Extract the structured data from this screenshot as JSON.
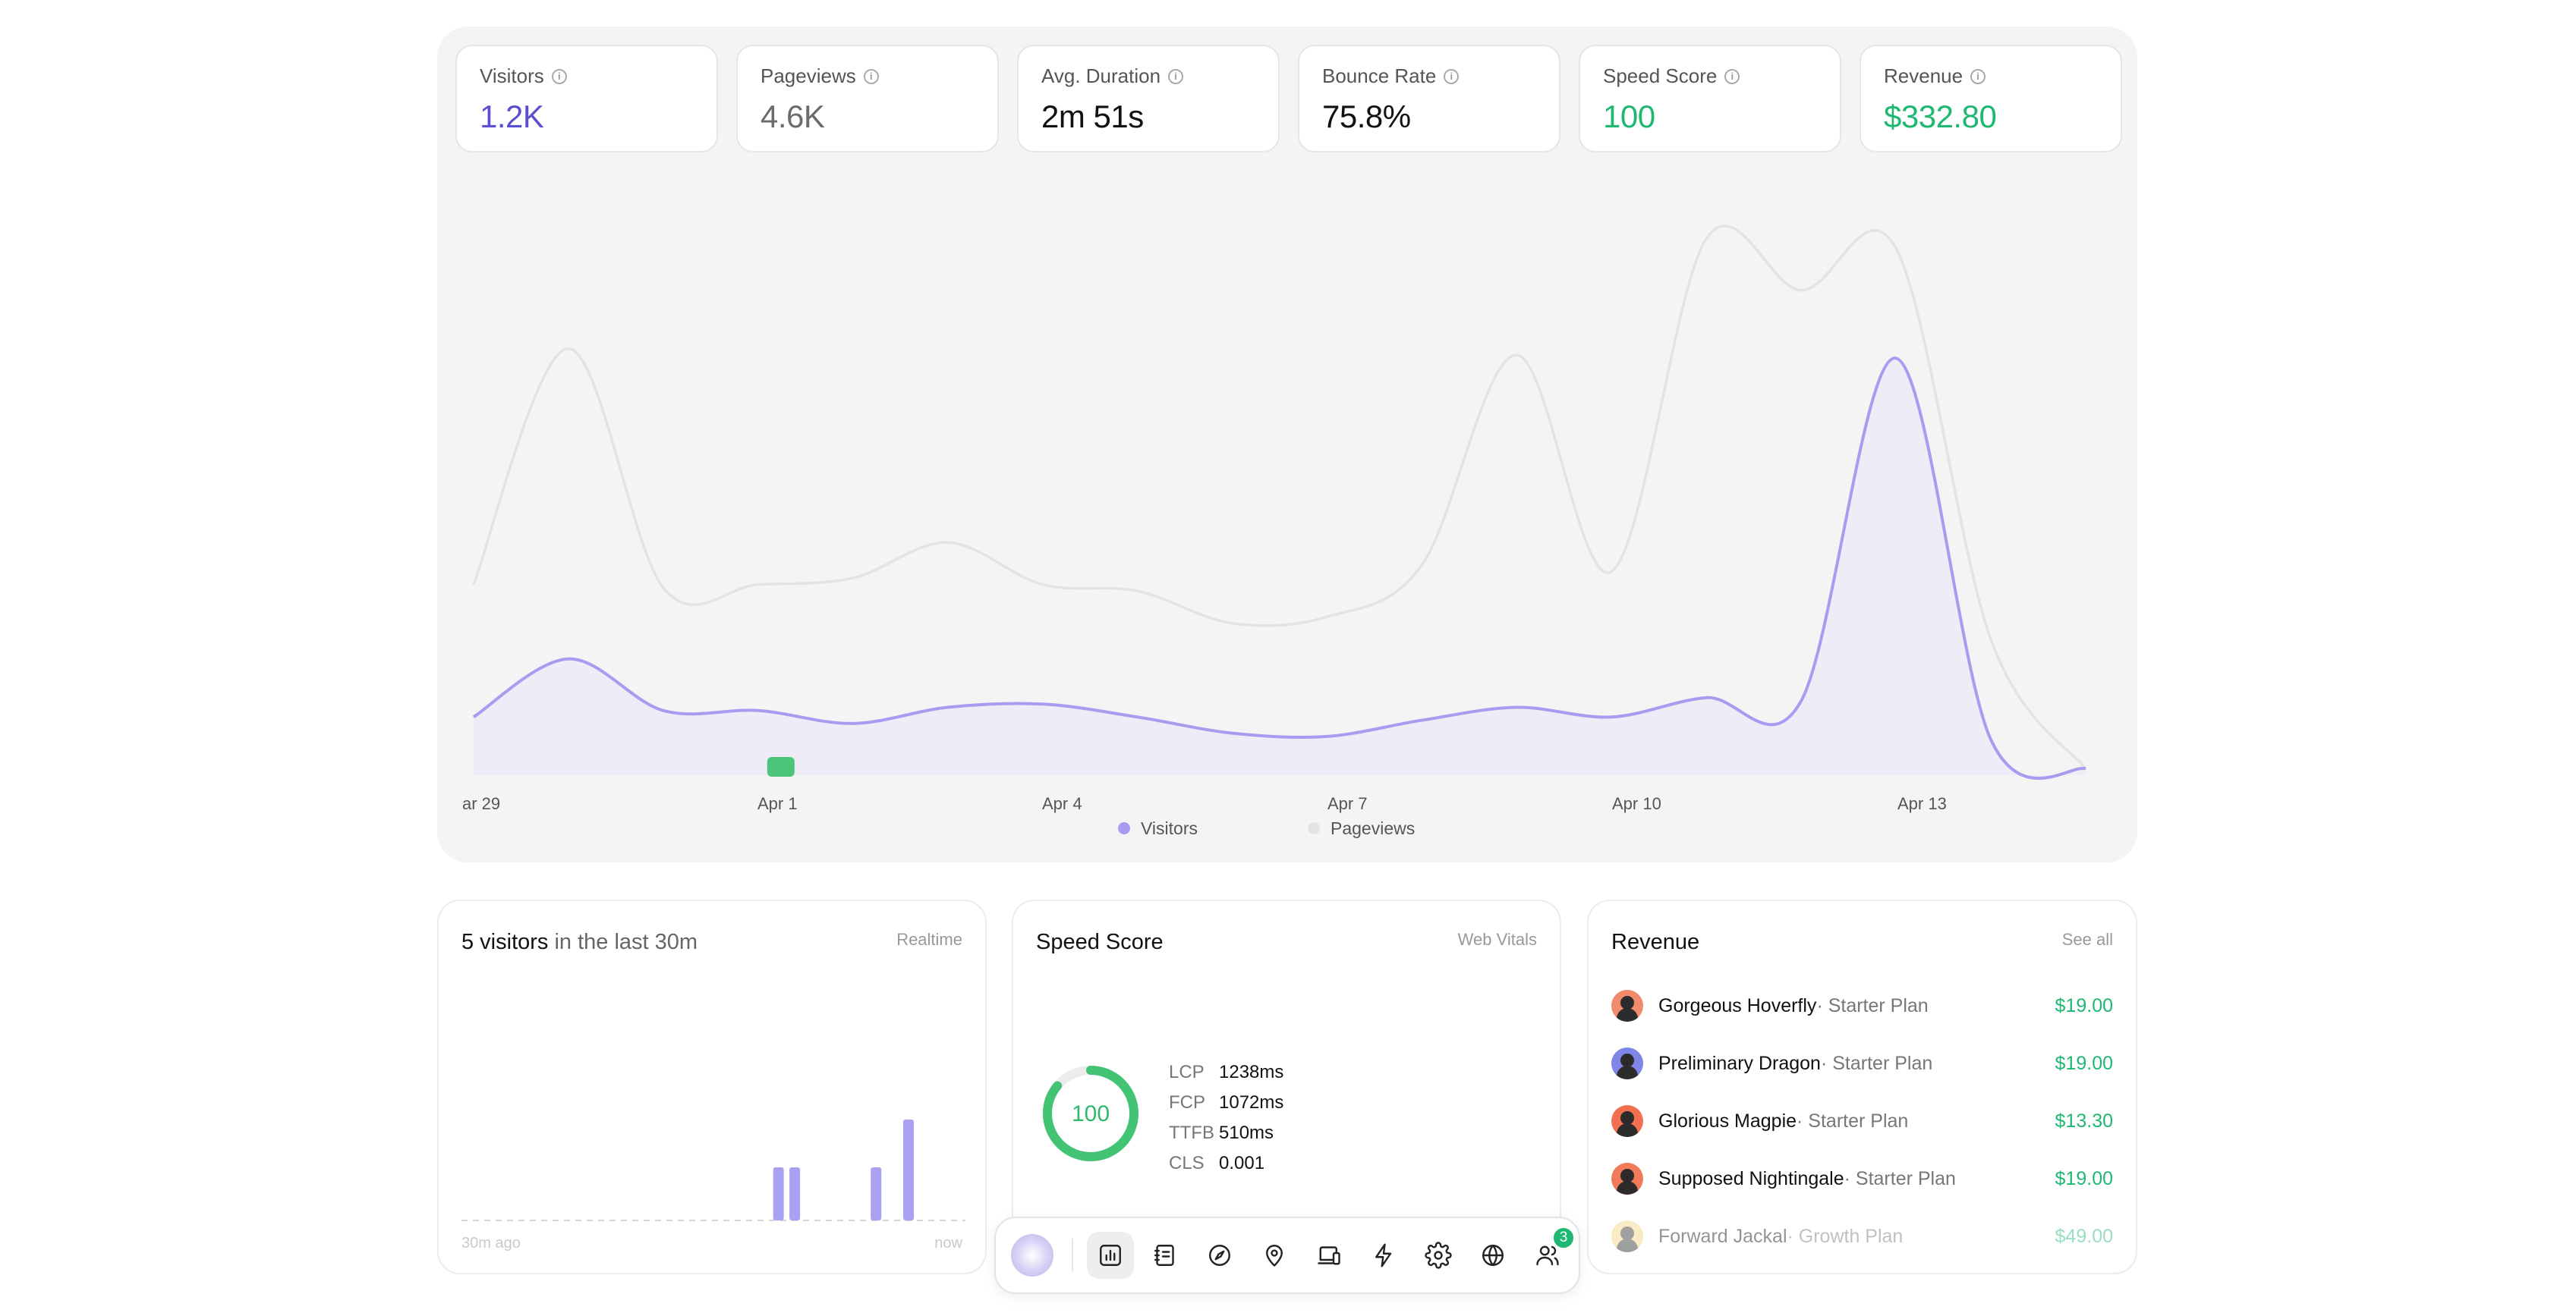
{
  "kpis": [
    {
      "label": "Visitors",
      "value": "1.2K"
    },
    {
      "label": "Pageviews",
      "value": "4.6K"
    },
    {
      "label": "Avg. Duration",
      "value": "2m 51s"
    },
    {
      "label": "Bounce Rate",
      "value": "75.8%"
    },
    {
      "label": "Speed Score",
      "value": "100"
    },
    {
      "label": "Revenue",
      "value": "$332.80"
    }
  ],
  "chart_data": {
    "type": "area",
    "x_tick_labels": [
      "ar 29",
      "Apr 1",
      "Apr 4",
      "Apr 7",
      "Apr 10",
      "Apr 13"
    ],
    "series": [
      {
        "name": "Visitors",
        "color": "#a99cf0",
        "values": [
          18,
          36,
          20,
          20,
          16,
          21,
          22,
          18,
          13,
          12,
          17,
          21,
          18,
          24,
          23,
          129,
          11,
          2
        ]
      },
      {
        "name": "Pageviews",
        "color": "#e3e3e3",
        "values": [
          59,
          132,
          58,
          59,
          61,
          72,
          59,
          57,
          47,
          49,
          65,
          130,
          63,
          166,
          150,
          163,
          42,
          2
        ]
      }
    ],
    "marker": {
      "x_index": 3,
      "color": "#4cc47a"
    },
    "legend_position": "bottom",
    "grid": false
  },
  "realtime": {
    "count": "5 visitors",
    "suffix": " in the last 30m",
    "link": "Realtime",
    "axis_start": "30m ago",
    "axis_end": "now",
    "bars": [
      0,
      0,
      0,
      0,
      0,
      0,
      0,
      0,
      0,
      0,
      0,
      0,
      0,
      0,
      0,
      0,
      0,
      0,
      0,
      1,
      1,
      0,
      0,
      0,
      0,
      1,
      0,
      1.9,
      0,
      0,
      0
    ],
    "bar_color": "#a9a2f3"
  },
  "speed": {
    "title": "Speed Score",
    "link": "Web Vitals",
    "score": "100",
    "score_fraction": 1.0,
    "vitals": [
      {
        "key": "LCP",
        "value": "1238ms"
      },
      {
        "key": "FCP",
        "value": "1072ms"
      },
      {
        "key": "TTFB",
        "value": "510ms"
      },
      {
        "key": "CLS",
        "value": "0.001"
      }
    ]
  },
  "revenue": {
    "title": "Revenue",
    "link": "See all",
    "items": [
      {
        "name": "Gorgeous Hoverfly",
        "plan": " · Starter Plan",
        "amount": "$19.00",
        "avatar_color": "#f28a6c"
      },
      {
        "name": "Preliminary Dragon",
        "plan": " · Starter Plan",
        "amount": "$19.00",
        "avatar_color": "#7f86e8"
      },
      {
        "name": "Glorious Magpie",
        "plan": " · Starter Plan",
        "amount": "$13.30",
        "avatar_color": "#f26f4f"
      },
      {
        "name": "Supposed Nightingale",
        "plan": " · Starter Plan",
        "amount": "$19.00",
        "avatar_color": "#f07a5a"
      },
      {
        "name": "Forward Jackal",
        "plan": " · Growth Plan",
        "amount": "$49.00",
        "avatar_color": "#f2d27a"
      }
    ]
  },
  "dock": {
    "items": [
      {
        "icon": "analytics-icon"
      },
      {
        "icon": "journal-icon"
      },
      {
        "icon": "compass-icon"
      },
      {
        "icon": "location-pin-icon"
      },
      {
        "icon": "devices-icon"
      },
      {
        "icon": "lightning-icon"
      },
      {
        "icon": "gear-icon"
      },
      {
        "icon": "globe-icon"
      },
      {
        "icon": "users-icon"
      }
    ],
    "badge": "3"
  }
}
